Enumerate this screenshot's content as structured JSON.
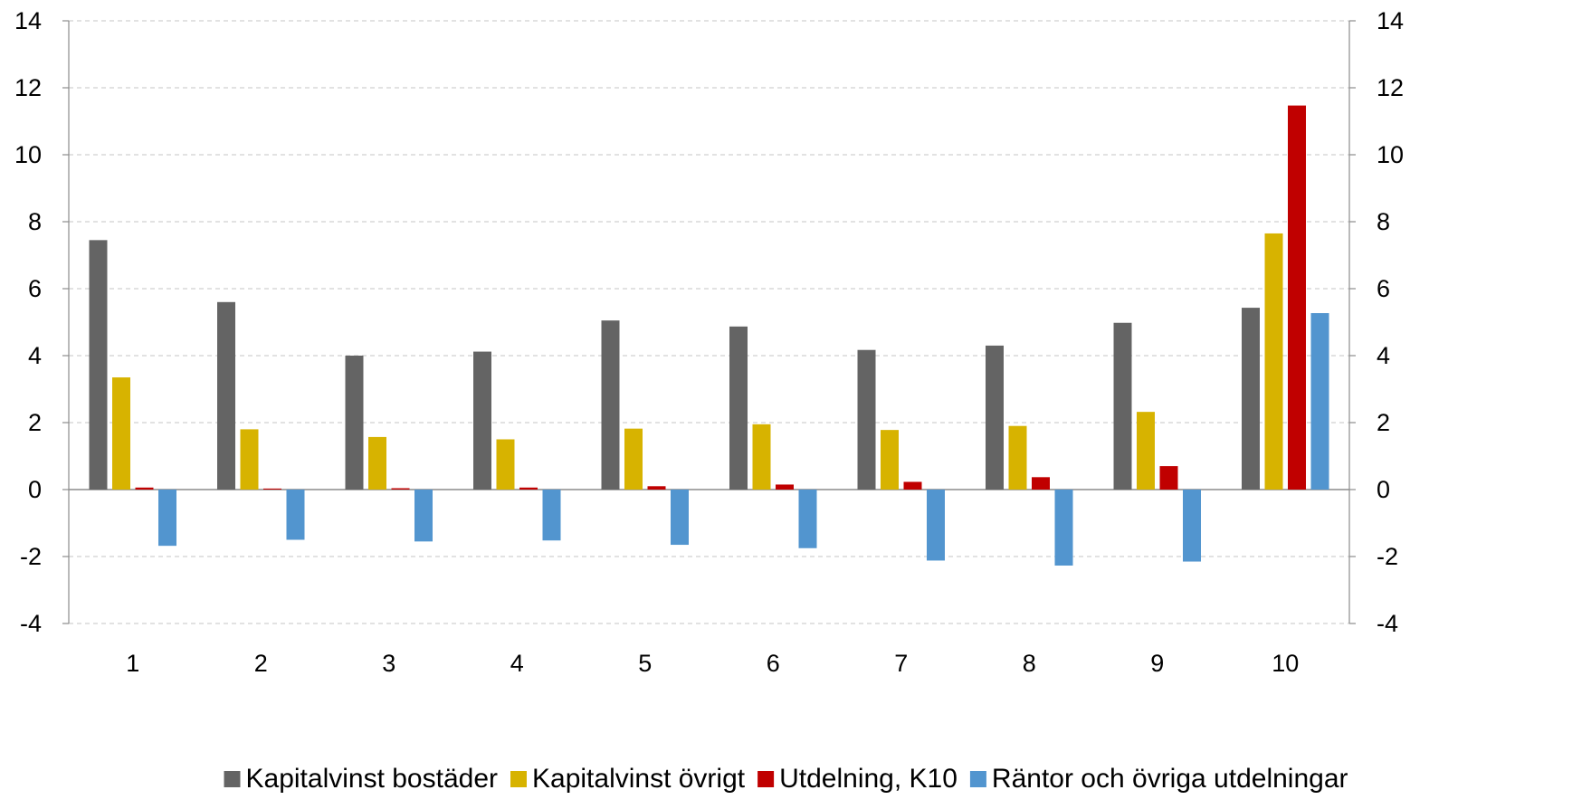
{
  "chart_data": {
    "type": "bar",
    "categories": [
      "1",
      "2",
      "3",
      "4",
      "5",
      "6",
      "7",
      "8",
      "9",
      "10"
    ],
    "ylim": [
      -4,
      14
    ],
    "yticks": [
      "-4",
      "-2",
      "0",
      "2",
      "4",
      "6",
      "8",
      "10",
      "12",
      "14"
    ],
    "y_axes": "left and right, identical",
    "grid": "horizontal, dashed",
    "legend_position": "bottom",
    "series": [
      {
        "name": "Kapitalvinst bostäder",
        "color": "#646464",
        "values": [
          7.45,
          5.6,
          4.0,
          4.12,
          5.05,
          4.87,
          4.17,
          4.3,
          4.98,
          5.43
        ]
      },
      {
        "name": "Kapitalvinst övrigt",
        "color": "#d7b300",
        "values": [
          3.35,
          1.8,
          1.57,
          1.5,
          1.82,
          1.95,
          1.78,
          1.9,
          2.32,
          7.65
        ]
      },
      {
        "name": "Utdelning, K10",
        "color": "#c00000",
        "values": [
          0.06,
          0.03,
          0.04,
          0.06,
          0.1,
          0.15,
          0.23,
          0.37,
          0.7,
          11.47
        ]
      },
      {
        "name": "Räntor och övriga utdelningar",
        "color": "#5295cf",
        "values": [
          -1.68,
          -1.5,
          -1.55,
          -1.52,
          -1.65,
          -1.75,
          -2.12,
          -2.27,
          -2.15,
          5.27
        ]
      }
    ]
  }
}
